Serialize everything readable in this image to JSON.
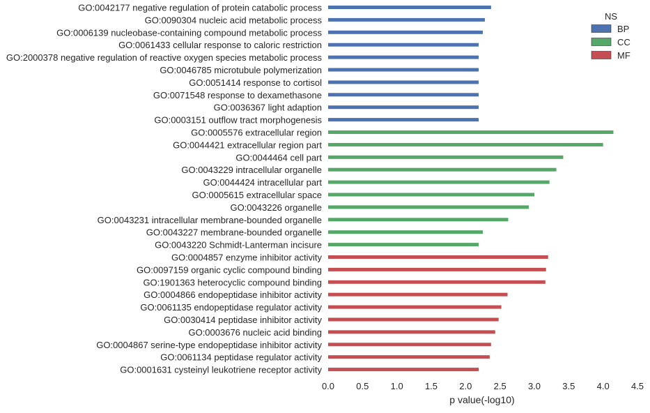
{
  "chart_data": {
    "type": "bar",
    "orientation": "horizontal",
    "xlabel": "p value(-log10)",
    "ylabel": "",
    "xlim": [
      0,
      4.5
    ],
    "xticks": [
      "0.0",
      "0.5",
      "1.0",
      "1.5",
      "2.0",
      "2.5",
      "3.0",
      "3.5",
      "4.0",
      "4.5"
    ],
    "grid": false,
    "legend": {
      "title": "NS",
      "placement": "top-right",
      "entries": [
        {
          "name": "BP",
          "color": "#4c72b0"
        },
        {
          "name": "CC",
          "color": "#55a868"
        },
        {
          "name": "MF",
          "color": "#c44e52"
        }
      ]
    },
    "bars": [
      {
        "label": "GO:0042177 negative regulation of protein catabolic process",
        "value": 2.37,
        "ns": "BP"
      },
      {
        "label": "GO:0090304 nucleic acid metabolic process",
        "value": 2.28,
        "ns": "BP"
      },
      {
        "label": "GO:0006139 nucleobase-containing compound metabolic process",
        "value": 2.25,
        "ns": "BP"
      },
      {
        "label": "GO:0061433 cellular response to caloric restriction",
        "value": 2.19,
        "ns": "BP"
      },
      {
        "label": "GO:2000378 negative regulation of reactive oxygen species metabolic process",
        "value": 2.19,
        "ns": "BP"
      },
      {
        "label": "GO:0046785 microtubule polymerization",
        "value": 2.19,
        "ns": "BP"
      },
      {
        "label": "GO:0051414 response to cortisol",
        "value": 2.19,
        "ns": "BP"
      },
      {
        "label": "GO:0071548 response to dexamethasone",
        "value": 2.19,
        "ns": "BP"
      },
      {
        "label": "GO:0036367 light adaption",
        "value": 2.19,
        "ns": "BP"
      },
      {
        "label": "GO:0003151 outflow tract morphogenesis",
        "value": 2.19,
        "ns": "BP"
      },
      {
        "label": "GO:0005576 extracellular region",
        "value": 4.15,
        "ns": "CC"
      },
      {
        "label": "GO:0044421 extracellular region part",
        "value": 4.0,
        "ns": "CC"
      },
      {
        "label": "GO:0044464 cell part",
        "value": 3.42,
        "ns": "CC"
      },
      {
        "label": "GO:0043229 intracellular organelle",
        "value": 3.32,
        "ns": "CC"
      },
      {
        "label": "GO:0044424 intracellular part",
        "value": 3.22,
        "ns": "CC"
      },
      {
        "label": "GO:0005615 extracellular space",
        "value": 3.0,
        "ns": "CC"
      },
      {
        "label": "GO:0043226 organelle",
        "value": 2.92,
        "ns": "CC"
      },
      {
        "label": "GO:0043231 intracellular membrane-bounded organelle",
        "value": 2.62,
        "ns": "CC"
      },
      {
        "label": "GO:0043227 membrane-bounded organelle",
        "value": 2.25,
        "ns": "CC"
      },
      {
        "label": "GO:0043220 Schmidt-Lanterman incisure",
        "value": 2.19,
        "ns": "CC"
      },
      {
        "label": "GO:0004857 enzyme inhibitor activity",
        "value": 3.2,
        "ns": "MF"
      },
      {
        "label": "GO:0097159 organic cyclic compound binding",
        "value": 3.17,
        "ns": "MF"
      },
      {
        "label": "GO:1901363 heterocyclic compound binding",
        "value": 3.16,
        "ns": "MF"
      },
      {
        "label": "GO:0004866 endopeptidase inhibitor activity",
        "value": 2.61,
        "ns": "MF"
      },
      {
        "label": "GO:0061135 endopeptidase regulator activity",
        "value": 2.52,
        "ns": "MF"
      },
      {
        "label": "GO:0030414 peptidase inhibitor activity",
        "value": 2.48,
        "ns": "MF"
      },
      {
        "label": "GO:0003676 nucleic acid binding",
        "value": 2.43,
        "ns": "MF"
      },
      {
        "label": "GO:0004867 serine-type endopeptidase inhibitor activity",
        "value": 2.37,
        "ns": "MF"
      },
      {
        "label": "GO:0061134 peptidase regulator activity",
        "value": 2.35,
        "ns": "MF"
      },
      {
        "label": "GO:0001631 cysteinyl leukotriene receptor activity",
        "value": 2.19,
        "ns": "MF"
      }
    ]
  }
}
